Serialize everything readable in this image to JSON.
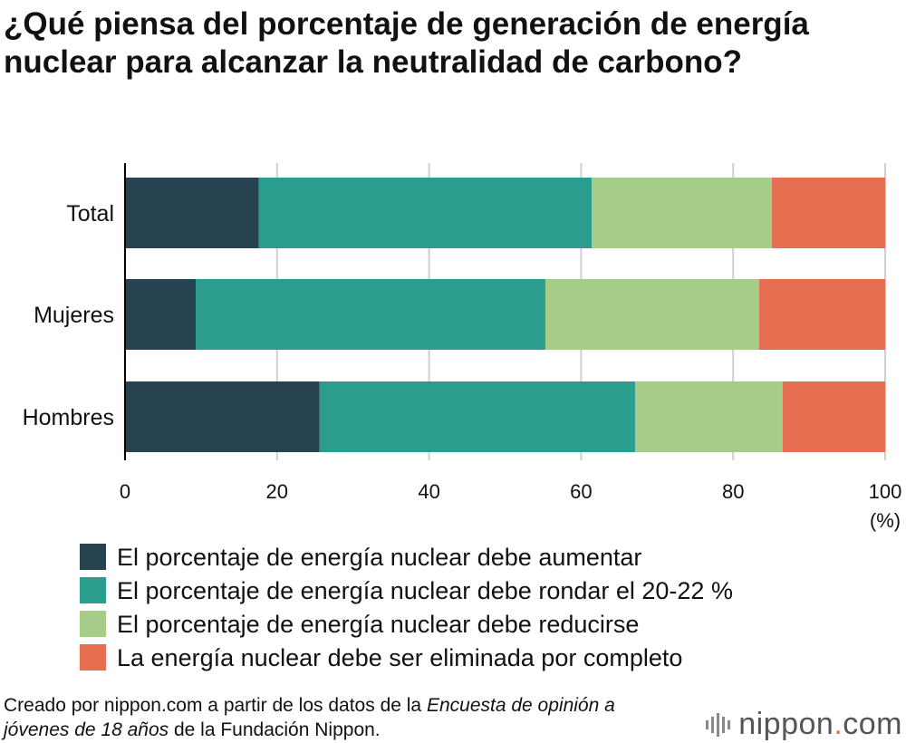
{
  "title": "¿Qué piensa del porcentaje de generación de energía nuclear para alcanzar la neutralidad de carbono?",
  "legend": [
    {
      "label": "El porcentaje de energía nuclear debe aumentar",
      "color": "#26434f"
    },
    {
      "label": "El porcentaje de energía nuclear debe rondar el 20-22 %",
      "color": "#2a9d8f"
    },
    {
      "label": "El porcentaje de energía nuclear debe reducirse",
      "color": "#a5cd87"
    },
    {
      "label": "La energía nuclear debe ser eliminada por completo",
      "color": "#e76f51"
    }
  ],
  "source": {
    "part1": "Creado por nippon.com a partir de los datos de la ",
    "italic": "Encuesta de opinión a jóvenes de 18 años",
    "part2": " de la Fundación Nippon."
  },
  "logo": {
    "name": "nippon",
    "dot": ".",
    "tld": "com"
  },
  "chart_data": {
    "type": "bar",
    "orientation": "horizontal",
    "stacked": true,
    "categories": [
      "Total",
      "Mujeres",
      "Hombres"
    ],
    "series": [
      {
        "name": "El porcentaje de energía nuclear debe aumentar",
        "values": [
          17.6,
          9.3,
          25.6
        ]
      },
      {
        "name": "El porcentaje de energía nuclear debe rondar el 20-22 %",
        "values": [
          43.8,
          46.0,
          41.5
        ]
      },
      {
        "name": "El porcentaje de energía nuclear debe reducirse",
        "values": [
          23.7,
          28.1,
          19.4
        ]
      },
      {
        "name": "La energía nuclear debe ser eliminada por completo",
        "values": [
          14.9,
          16.6,
          13.5
        ]
      }
    ],
    "xticks": [
      "0",
      "20",
      "40",
      "60",
      "80",
      "100"
    ],
    "xunit": "(%)",
    "xlim": [
      0,
      100
    ],
    "grid": true
  }
}
